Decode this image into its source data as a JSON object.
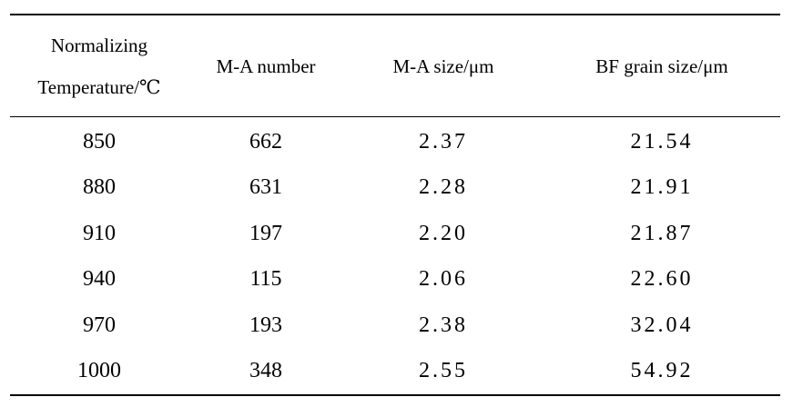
{
  "table": {
    "headers": [
      {
        "line1": "Normalizing",
        "line2": "Temperature/℃"
      },
      {
        "line1": "M-A number"
      },
      {
        "line1": "M-A size/μm"
      },
      {
        "line1": "BF grain size/μm"
      }
    ],
    "rows": [
      {
        "temp": "850",
        "ma_number": "662",
        "ma_size": "2.37",
        "bf_grain_size": "21.54"
      },
      {
        "temp": "880",
        "ma_number": "631",
        "ma_size": "2.28",
        "bf_grain_size": "21.91"
      },
      {
        "temp": "910",
        "ma_number": "197",
        "ma_size": "2.20",
        "bf_grain_size": "21.87"
      },
      {
        "temp": "940",
        "ma_number": "115",
        "ma_size": "2.06",
        "bf_grain_size": "22.60"
      },
      {
        "temp": "970",
        "ma_number": "193",
        "ma_size": "2.38",
        "bf_grain_size": "32.04"
      },
      {
        "temp": "1000",
        "ma_number": "348",
        "ma_size": "2.55",
        "bf_grain_size": "54.92"
      }
    ]
  }
}
